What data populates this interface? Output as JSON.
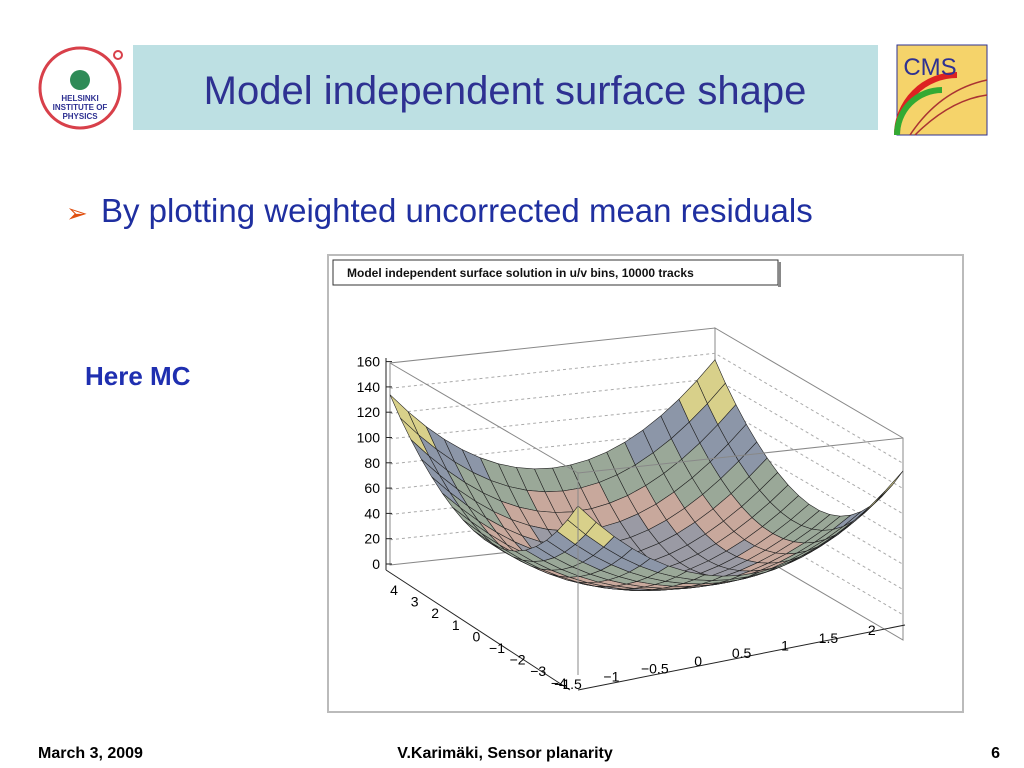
{
  "header": {
    "title": "Model independent surface shape",
    "logo_left": [
      "HELSINKI",
      "INSTITUTE OF",
      "PHYSICS"
    ],
    "logo_right": "CMS"
  },
  "bullets": [
    "By plotting weighted uncorrected mean residuals"
  ],
  "note": "Here MC",
  "figure": {
    "title": "Model independent surface solution in u/v bins, 10000 tracks",
    "z_ticks": [
      "0",
      "20",
      "40",
      "60",
      "80",
      "100",
      "120",
      "140",
      "160"
    ],
    "y_ticks": [
      "4",
      "3",
      "2",
      "1",
      "0",
      "−1",
      "−2",
      "−3",
      "−4"
    ],
    "x_ticks": [
      "−1.5",
      "−1",
      "−0.5",
      "0",
      "0.5",
      "1",
      "1.5",
      "2"
    ]
  },
  "footer": {
    "date": "March 3, 2009",
    "author": "V.Karimäki, Sensor planarity",
    "page": "6"
  }
}
